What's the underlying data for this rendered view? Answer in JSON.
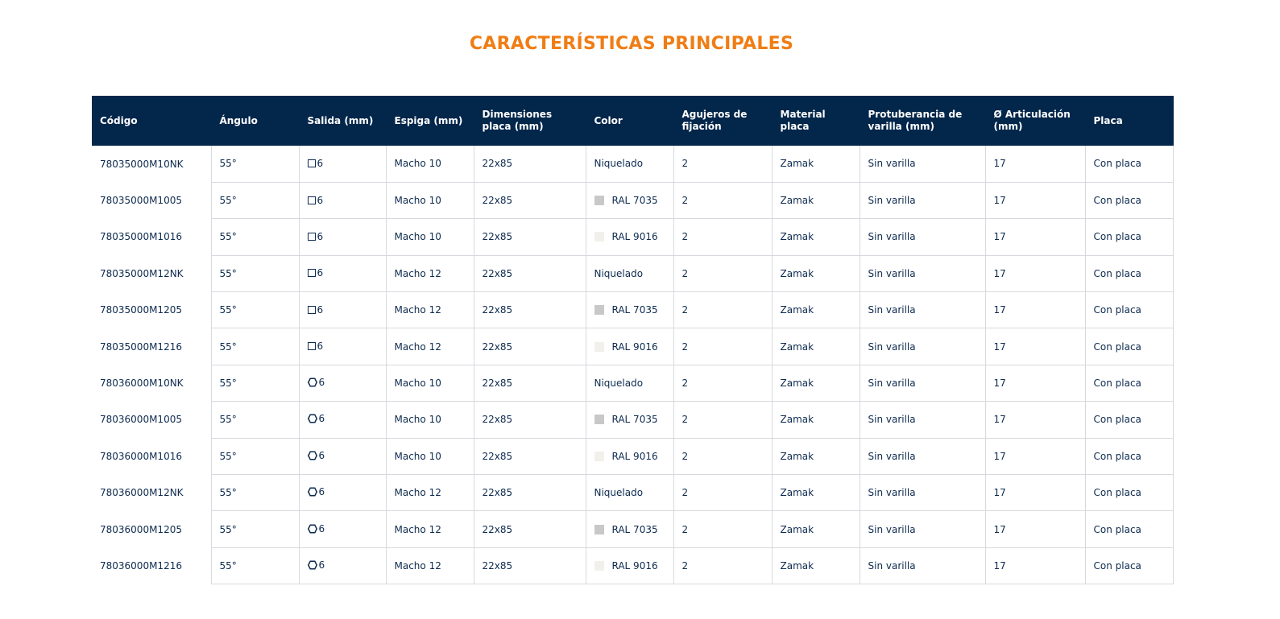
{
  "title": "CARACTERÍSTICAS PRINCIPALES",
  "colors": {
    "title": "#f07d14",
    "header_bg": "#03264b",
    "text": "#0d2a4e",
    "ral_7035": "#c8c8c8",
    "ral_9016": "#f1f0ea"
  },
  "headers": {
    "codigo": "Código",
    "angulo": "Ángulo",
    "salida": "Salida (mm)",
    "espiga": "Espiga (mm)",
    "dimensiones": "Dimensiones placa (mm)",
    "color": "Color",
    "agujeros": "Agujeros de fijación",
    "material": "Material placa",
    "protuberancia": "Protuberancia de varilla (mm)",
    "articulacion": "Ø Articulación (mm)",
    "placa": "Placa"
  },
  "rows": [
    {
      "codigo": "78035000M10NK",
      "angulo": "55°",
      "salida_icon": "square-icon",
      "salida": "6",
      "espiga": "Macho 10",
      "dimensiones": "22x85",
      "color": "Niquelado",
      "swatch": "",
      "agujeros": "2",
      "material": "Zamak",
      "protuberancia": "Sin varilla",
      "articulacion": "17",
      "placa": "Con placa"
    },
    {
      "codigo": "78035000M1005",
      "angulo": "55°",
      "salida_icon": "square-icon",
      "salida": "6",
      "espiga": "Macho 10",
      "dimensiones": "22x85",
      "color": "RAL 7035",
      "swatch": "#c8c8c8",
      "agujeros": "2",
      "material": "Zamak",
      "protuberancia": "Sin varilla",
      "articulacion": "17",
      "placa": "Con placa"
    },
    {
      "codigo": "78035000M1016",
      "angulo": "55°",
      "salida_icon": "square-icon",
      "salida": "6",
      "espiga": "Macho 10",
      "dimensiones": "22x85",
      "color": "RAL 9016",
      "swatch": "#f1f0ea",
      "agujeros": "2",
      "material": "Zamak",
      "protuberancia": "Sin varilla",
      "articulacion": "17",
      "placa": "Con placa"
    },
    {
      "codigo": "78035000M12NK",
      "angulo": "55°",
      "salida_icon": "square-icon",
      "salida": "6",
      "espiga": "Macho 12",
      "dimensiones": "22x85",
      "color": "Niquelado",
      "swatch": "",
      "agujeros": "2",
      "material": "Zamak",
      "protuberancia": "Sin varilla",
      "articulacion": "17",
      "placa": "Con placa"
    },
    {
      "codigo": "78035000M1205",
      "angulo": "55°",
      "salida_icon": "square-icon",
      "salida": "6",
      "espiga": "Macho 12",
      "dimensiones": "22x85",
      "color": "RAL 7035",
      "swatch": "#c8c8c8",
      "agujeros": "2",
      "material": "Zamak",
      "protuberancia": "Sin varilla",
      "articulacion": "17",
      "placa": "Con placa"
    },
    {
      "codigo": "78035000M1216",
      "angulo": "55°",
      "salida_icon": "square-icon",
      "salida": "6",
      "espiga": "Macho 12",
      "dimensiones": "22x85",
      "color": "RAL 9016",
      "swatch": "#f1f0ea",
      "agujeros": "2",
      "material": "Zamak",
      "protuberancia": "Sin varilla",
      "articulacion": "17",
      "placa": "Con placa"
    },
    {
      "codigo": "78036000M10NK",
      "angulo": "55°",
      "salida_icon": "hexagon-icon",
      "salida": "6",
      "espiga": "Macho 10",
      "dimensiones": "22x85",
      "color": "Niquelado",
      "swatch": "",
      "agujeros": "2",
      "material": "Zamak",
      "protuberancia": "Sin varilla",
      "articulacion": "17",
      "placa": "Con placa"
    },
    {
      "codigo": "78036000M1005",
      "angulo": "55°",
      "salida_icon": "hexagon-icon",
      "salida": "6",
      "espiga": "Macho 10",
      "dimensiones": "22x85",
      "color": "RAL 7035",
      "swatch": "#c8c8c8",
      "agujeros": "2",
      "material": "Zamak",
      "protuberancia": "Sin varilla",
      "articulacion": "17",
      "placa": "Con placa"
    },
    {
      "codigo": "78036000M1016",
      "angulo": "55°",
      "salida_icon": "hexagon-icon",
      "salida": "6",
      "espiga": "Macho 10",
      "dimensiones": "22x85",
      "color": "RAL 9016",
      "swatch": "#f1f0ea",
      "agujeros": "2",
      "material": "Zamak",
      "protuberancia": "Sin varilla",
      "articulacion": "17",
      "placa": "Con placa"
    },
    {
      "codigo": "78036000M12NK",
      "angulo": "55°",
      "salida_icon": "hexagon-icon",
      "salida": "6",
      "espiga": "Macho 12",
      "dimensiones": "22x85",
      "color": "Niquelado",
      "swatch": "",
      "agujeros": "2",
      "material": "Zamak",
      "protuberancia": "Sin varilla",
      "articulacion": "17",
      "placa": "Con placa"
    },
    {
      "codigo": "78036000M1205",
      "angulo": "55°",
      "salida_icon": "hexagon-icon",
      "salida": "6",
      "espiga": "Macho 12",
      "dimensiones": "22x85",
      "color": "RAL 7035",
      "swatch": "#c8c8c8",
      "agujeros": "2",
      "material": "Zamak",
      "protuberancia": "Sin varilla",
      "articulacion": "17",
      "placa": "Con placa"
    },
    {
      "codigo": "78036000M1216",
      "angulo": "55°",
      "salida_icon": "hexagon-icon",
      "salida": "6",
      "espiga": "Macho 12",
      "dimensiones": "22x85",
      "color": "RAL 9016",
      "swatch": "#f1f0ea",
      "agujeros": "2",
      "material": "Zamak",
      "protuberancia": "Sin varilla",
      "articulacion": "17",
      "placa": "Con placa"
    }
  ]
}
